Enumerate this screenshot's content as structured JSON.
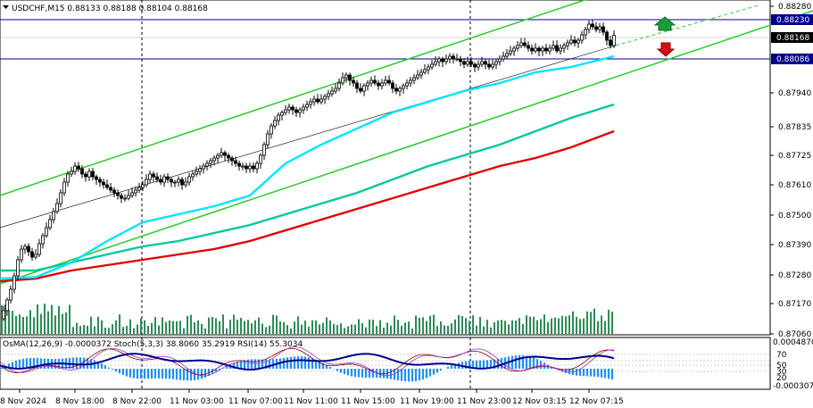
{
  "header": {
    "symbol_line": "USDCHF,M15  0.88133 0.88188 0.88104 0.88168"
  },
  "indicator_header": {
    "text": "OsMA(12,26,9) -0.0000372  Stoch(5,3,3) 38.8060 35.2919  RSI(14) 55.3034"
  },
  "colors": {
    "background": "#ffffff",
    "candles": "#000000",
    "channel": "#32cd32",
    "ema_fast": "#00e5ff",
    "ema_mid": "#00c89a",
    "ema_slow": "#e00000",
    "hline": "#00008b",
    "volume": "#2e8b57",
    "osma": "#1e90ff",
    "stoch_main": "#00008b",
    "stoch_signal": "#8b0000",
    "rsi": "#9932cc",
    "arrow_up": "#1a9b3a",
    "arrow_down": "#d01010"
  },
  "chart_data": {
    "type": "candlestick",
    "ylim": [
      0.8706,
      0.8828
    ],
    "y_ticks": [
      "0.88280",
      "0.88230",
      "0.88168",
      "0.88086",
      "0.87940",
      "0.87835",
      "0.87725",
      "0.87610",
      "0.87500",
      "0.87390",
      "0.87280",
      "0.87170",
      "0.87060"
    ],
    "price_labels": {
      "upper_line": "0.88230",
      "current": "0.88168",
      "lower_line": "0.88086"
    },
    "x_ticks": [
      "8 Nov 2024",
      "8 Nov 18:00",
      "8 Nov 22:00",
      "11 Nov 03:00",
      "11 Nov 07:00",
      "11 Nov 11:00",
      "11 Nov 15:00",
      "11 Nov 19:00",
      "11 Nov 23:00",
      "12 Nov 03:15",
      "12 Nov 07:15"
    ],
    "indicator_ticks": [
      "0.0004870",
      "70",
      "50",
      "30",
      "20",
      "-0.0003070"
    ],
    "price_path": [
      [
        0,
        0.8711
      ],
      [
        4,
        0.8714
      ],
      [
        8,
        0.8718
      ],
      [
        12,
        0.8722
      ],
      [
        16,
        0.8727
      ],
      [
        20,
        0.8733
      ],
      [
        24,
        0.8737
      ],
      [
        28,
        0.8738
      ],
      [
        32,
        0.8736
      ],
      [
        36,
        0.8734
      ],
      [
        40,
        0.8735
      ],
      [
        44,
        0.8739
      ],
      [
        48,
        0.8742
      ],
      [
        52,
        0.8745
      ],
      [
        56,
        0.8748
      ],
      [
        60,
        0.8751
      ],
      [
        64,
        0.8754
      ],
      [
        68,
        0.8758
      ],
      [
        72,
        0.8762
      ],
      [
        76,
        0.8765
      ],
      [
        80,
        0.8766
      ],
      [
        84,
        0.8768
      ],
      [
        88,
        0.8767
      ],
      [
        92,
        0.8765
      ],
      [
        96,
        0.8764
      ],
      [
        100,
        0.8766
      ],
      [
        104,
        0.8764
      ],
      [
        108,
        0.8763
      ],
      [
        112,
        0.8762
      ],
      [
        116,
        0.8761
      ],
      [
        120,
        0.876
      ],
      [
        124,
        0.8759
      ],
      [
        128,
        0.8758
      ],
      [
        132,
        0.8757
      ],
      [
        136,
        0.8756
      ],
      [
        140,
        0.8756
      ],
      [
        144,
        0.8757
      ],
      [
        148,
        0.8758
      ],
      [
        152,
        0.8759
      ],
      [
        156,
        0.876
      ],
      [
        160,
        0.8761
      ],
      [
        164,
        0.8763
      ],
      [
        168,
        0.8765
      ],
      [
        172,
        0.8764
      ],
      [
        176,
        0.8763
      ],
      [
        180,
        0.8762
      ],
      [
        184,
        0.8764
      ],
      [
        188,
        0.8763
      ],
      [
        192,
        0.8762
      ],
      [
        196,
        0.8762
      ],
      [
        200,
        0.8763
      ],
      [
        204,
        0.8761
      ],
      [
        208,
        0.8762
      ],
      [
        212,
        0.8764
      ],
      [
        216,
        0.8765
      ],
      [
        220,
        0.8766
      ],
      [
        224,
        0.8767
      ],
      [
        228,
        0.8768
      ],
      [
        232,
        0.8769
      ],
      [
        236,
        0.877
      ],
      [
        240,
        0.8771
      ],
      [
        244,
        0.8772
      ],
      [
        248,
        0.8773
      ],
      [
        252,
        0.8772
      ],
      [
        256,
        0.8771
      ],
      [
        260,
        0.877
      ],
      [
        264,
        0.8769
      ],
      [
        268,
        0.8768
      ],
      [
        272,
        0.8768
      ],
      [
        276,
        0.8767
      ],
      [
        280,
        0.8768
      ],
      [
        284,
        0.8767
      ],
      [
        288,
        0.8769
      ],
      [
        292,
        0.8772
      ],
      [
        296,
        0.8776
      ],
      [
        300,
        0.878
      ],
      [
        304,
        0.8783
      ],
      [
        308,
        0.8785
      ],
      [
        312,
        0.8787
      ],
      [
        316,
        0.8788
      ],
      [
        320,
        0.8789
      ],
      [
        324,
        0.879
      ],
      [
        328,
        0.8789
      ],
      [
        332,
        0.8788
      ],
      [
        336,
        0.8789
      ],
      [
        340,
        0.879
      ],
      [
        344,
        0.8791
      ],
      [
        348,
        0.8792
      ],
      [
        352,
        0.8793
      ],
      [
        356,
        0.8792
      ],
      [
        360,
        0.8793
      ],
      [
        364,
        0.8794
      ],
      [
        368,
        0.8795
      ],
      [
        372,
        0.8796
      ],
      [
        376,
        0.8797
      ],
      [
        380,
        0.8799
      ],
      [
        384,
        0.8801
      ],
      [
        388,
        0.8802
      ],
      [
        392,
        0.88
      ],
      [
        396,
        0.8799
      ],
      [
        400,
        0.8797
      ],
      [
        404,
        0.8796
      ],
      [
        408,
        0.8798
      ],
      [
        412,
        0.8799
      ],
      [
        416,
        0.88
      ],
      [
        420,
        0.8799
      ],
      [
        424,
        0.8798
      ],
      [
        428,
        0.8799
      ],
      [
        432,
        0.88
      ],
      [
        436,
        0.8799
      ],
      [
        440,
        0.8797
      ],
      [
        444,
        0.8796
      ],
      [
        448,
        0.8797
      ],
      [
        452,
        0.8798
      ],
      [
        456,
        0.8799
      ],
      [
        460,
        0.88
      ],
      [
        464,
        0.8801
      ],
      [
        468,
        0.8802
      ],
      [
        472,
        0.8803
      ],
      [
        476,
        0.8804
      ],
      [
        480,
        0.8805
      ],
      [
        484,
        0.8806
      ],
      [
        488,
        0.8807
      ],
      [
        492,
        0.8808
      ],
      [
        496,
        0.8807
      ],
      [
        500,
        0.8808
      ],
      [
        504,
        0.8809
      ],
      [
        508,
        0.8808
      ],
      [
        512,
        0.8808
      ],
      [
        516,
        0.8807
      ],
      [
        520,
        0.8806
      ],
      [
        524,
        0.8807
      ],
      [
        528,
        0.8806
      ],
      [
        532,
        0.8805
      ],
      [
        536,
        0.8806
      ],
      [
        540,
        0.8807
      ],
      [
        544,
        0.8806
      ],
      [
        548,
        0.8805
      ],
      [
        552,
        0.8806
      ],
      [
        556,
        0.8807
      ],
      [
        560,
        0.8808
      ],
      [
        564,
        0.8809
      ],
      [
        568,
        0.881
      ],
      [
        572,
        0.8811
      ],
      [
        576,
        0.8812
      ],
      [
        580,
        0.8813
      ],
      [
        584,
        0.8814
      ],
      [
        588,
        0.8813
      ],
      [
        592,
        0.8812
      ],
      [
        596,
        0.8811
      ],
      [
        600,
        0.8812
      ],
      [
        604,
        0.8811
      ],
      [
        608,
        0.8812
      ],
      [
        612,
        0.8811
      ],
      [
        616,
        0.8812
      ],
      [
        620,
        0.8813
      ],
      [
        624,
        0.8811
      ],
      [
        628,
        0.8812
      ],
      [
        632,
        0.8813
      ],
      [
        636,
        0.8814
      ],
      [
        640,
        0.8815
      ],
      [
        644,
        0.8814
      ],
      [
        648,
        0.8815
      ],
      [
        652,
        0.8817
      ],
      [
        656,
        0.8819
      ],
      [
        660,
        0.8821
      ],
      [
        664,
        0.882
      ],
      [
        668,
        0.8819
      ],
      [
        672,
        0.882
      ],
      [
        676,
        0.8818
      ],
      [
        680,
        0.8815
      ],
      [
        684,
        0.8813
      ],
      [
        688,
        0.88168
      ]
    ],
    "channel_lines": [
      {
        "from": [
          0,
          0.8757
        ],
        "to": [
          745,
          0.884
        ]
      },
      {
        "from": [
          0,
          0.8724
        ],
        "to": [
          911,
          0.8826
        ]
      },
      {
        "from": [
          0,
          0.8745
        ],
        "to": [
          690,
          0.8813
        ]
      }
    ],
    "channel_dashed": [
      {
        "from": [
          690,
          0.8813
        ],
        "to": [
          850,
          0.8828
        ]
      }
    ],
    "ema_fast": [
      [
        0,
        0.8726
      ],
      [
        40,
        0.87265
      ],
      [
        80,
        0.8732
      ],
      [
        120,
        0.874
      ],
      [
        160,
        0.8747
      ],
      [
        200,
        0.875
      ],
      [
        240,
        0.8753
      ],
      [
        280,
        0.8757
      ],
      [
        320,
        0.8769
      ],
      [
        360,
        0.8776
      ],
      [
        400,
        0.8782
      ],
      [
        440,
        0.8788
      ],
      [
        480,
        0.8792
      ],
      [
        520,
        0.8796
      ],
      [
        560,
        0.8799
      ],
      [
        600,
        0.8803
      ],
      [
        640,
        0.8805
      ],
      [
        688,
        0.8809
      ]
    ],
    "ema_mid": [
      [
        0,
        0.8729
      ],
      [
        40,
        0.8729
      ],
      [
        80,
        0.8732
      ],
      [
        120,
        0.8735
      ],
      [
        160,
        0.8738
      ],
      [
        200,
        0.874
      ],
      [
        240,
        0.8743
      ],
      [
        280,
        0.8746
      ],
      [
        320,
        0.875
      ],
      [
        360,
        0.8754
      ],
      [
        400,
        0.8758
      ],
      [
        440,
        0.8763
      ],
      [
        480,
        0.8768
      ],
      [
        520,
        0.8772
      ],
      [
        560,
        0.8776
      ],
      [
        600,
        0.8781
      ],
      [
        640,
        0.8786
      ],
      [
        688,
        0.8791
      ]
    ],
    "ema_slow": [
      [
        0,
        0.8725
      ],
      [
        40,
        0.8726
      ],
      [
        80,
        0.8729
      ],
      [
        120,
        0.8731
      ],
      [
        160,
        0.8733
      ],
      [
        200,
        0.8735
      ],
      [
        240,
        0.8737
      ],
      [
        280,
        0.874
      ],
      [
        320,
        0.8744
      ],
      [
        360,
        0.8748
      ],
      [
        400,
        0.8752
      ],
      [
        440,
        0.8756
      ],
      [
        480,
        0.876
      ],
      [
        520,
        0.8764
      ],
      [
        560,
        0.8768
      ],
      [
        600,
        0.8771
      ],
      [
        640,
        0.8775
      ],
      [
        688,
        0.8781
      ]
    ]
  }
}
